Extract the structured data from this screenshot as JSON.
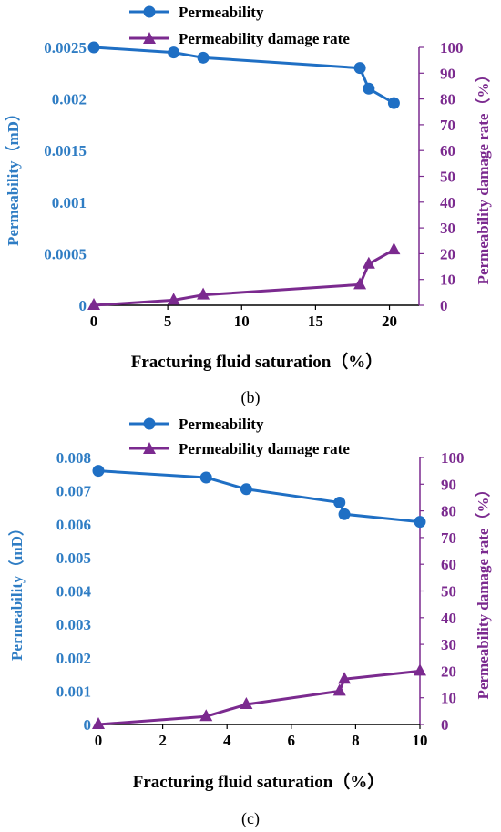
{
  "colors": {
    "permeability": "#1f6fc4",
    "damage": "#7b2a8f",
    "left_axis": "#2f7dc4",
    "right_axis": "#7b2a8f"
  },
  "chart_data": [
    {
      "type": "line",
      "panel_label": "(b)",
      "xlabel": "Fracturing fluid saturation（%）",
      "ylabel_left": "Permeability（mD）",
      "ylabel_right": "Permeability damage rate（%）",
      "xlim": [
        0,
        22
      ],
      "ylim_left": [
        0,
        0.0025
      ],
      "ylim_right": [
        0,
        100
      ],
      "x_ticks": [
        "0",
        "5",
        "10",
        "15",
        "20"
      ],
      "y_left_ticks": [
        "0",
        "0.0005",
        "0.001",
        "0.0015",
        "0.002",
        "0.0025"
      ],
      "y_right_ticks": [
        "0",
        "10",
        "20",
        "30",
        "40",
        "50",
        "60",
        "70",
        "80",
        "90",
        "100"
      ],
      "legend_position": "top",
      "series": [
        {
          "name": "Permeability",
          "axis": "left",
          "marker": "circle",
          "x": [
            0,
            5.4,
            7.4,
            18,
            18.6,
            20.3
          ],
          "y": [
            0.0025,
            0.00245,
            0.0024,
            0.0023,
            0.0021,
            0.00196
          ]
        },
        {
          "name": "Permeability damage rate",
          "axis": "right",
          "marker": "triangle",
          "x": [
            0,
            5.4,
            7.4,
            18,
            18.6,
            20.3
          ],
          "y": [
            0,
            2,
            4,
            8,
            16,
            21.5
          ]
        }
      ]
    },
    {
      "type": "line",
      "panel_label": "(c)",
      "xlabel": "Fracturing fluid saturation（%）",
      "ylabel_left": "Permeability（mD）",
      "ylabel_right": "Permeability damage rate（%）",
      "xlim": [
        0,
        10
      ],
      "ylim_left": [
        0,
        0.008
      ],
      "ylim_right": [
        0,
        100
      ],
      "x_ticks": [
        "0",
        "2",
        "4",
        "6",
        "8",
        "10"
      ],
      "y_left_ticks": [
        "0",
        "0.001",
        "0.002",
        "0.003",
        "0.004",
        "0.005",
        "0.006",
        "0.007",
        "0.008"
      ],
      "y_right_ticks": [
        "0",
        "10",
        "20",
        "30",
        "40",
        "50",
        "60",
        "70",
        "80",
        "90",
        "100"
      ],
      "legend_position": "top",
      "series": [
        {
          "name": "Permeability",
          "axis": "left",
          "marker": "circle",
          "x": [
            0,
            3.35,
            4.6,
            7.5,
            7.65,
            10
          ],
          "y": [
            0.0076,
            0.0074,
            0.00705,
            0.00665,
            0.0063,
            0.00607
          ]
        },
        {
          "name": "Permeability damage rate",
          "axis": "right",
          "marker": "triangle",
          "x": [
            0,
            3.35,
            4.6,
            7.5,
            7.65,
            10
          ],
          "y": [
            0,
            3,
            7.5,
            12.5,
            17,
            20
          ]
        }
      ]
    }
  ]
}
